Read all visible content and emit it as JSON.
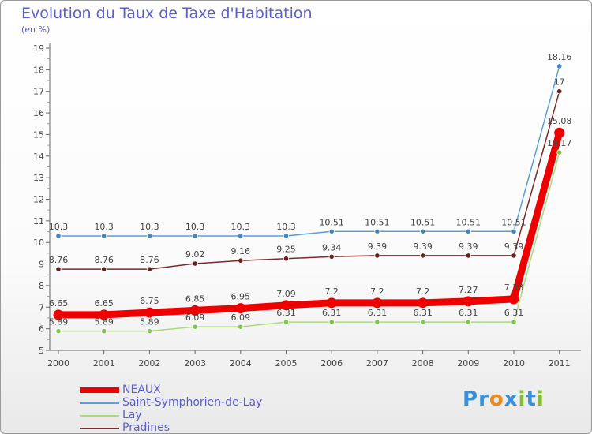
{
  "title": "Evolution du Taux de Taxe d'Habitation",
  "subtitle": "(en %)",
  "logo": {
    "letters": [
      "P",
      "r",
      "o",
      "x",
      "i",
      "t",
      "i"
    ],
    "colors": [
      "#3a8fd8",
      "#3a8fd8",
      "#f08a1e",
      "#3a8fd8",
      "#7fbf2a",
      "#3a8fd8",
      "#7fbf2a"
    ]
  },
  "chart_data": {
    "type": "line",
    "title": "Evolution du Taux de Taxe d'Habitation",
    "ylabel": "(en %)",
    "x": [
      "2000",
      "2001",
      "2002",
      "2003",
      "2004",
      "2005",
      "2006",
      "2007",
      "2008",
      "2009",
      "2010",
      "2011"
    ],
    "ylim": [
      5,
      19
    ],
    "yticks": [
      "5",
      "6",
      "7",
      "8",
      "9",
      "10",
      "11",
      "12",
      "13",
      "14",
      "15",
      "16",
      "17",
      "18",
      "19"
    ],
    "grid": false,
    "legend_position": "bottom-left",
    "series": [
      {
        "name": "NEAUX",
        "color": "#ee0000",
        "emphasis": true,
        "values": [
          6.65,
          6.65,
          6.75,
          6.85,
          6.95,
          7.09,
          7.2,
          7.2,
          7.2,
          7.27,
          7.38,
          15.08
        ],
        "labels": [
          "6.65",
          "6.65",
          "6.75",
          "6.85",
          "6.95",
          "7.09",
          "7.2",
          "7.2",
          "7.2",
          "7.27",
          "7.38",
          "15.08"
        ]
      },
      {
        "name": "Saint-Symphorien-de-Lay",
        "color": "#5b9fd4",
        "marker": "#3f86c4",
        "values": [
          10.3,
          10.3,
          10.3,
          10.3,
          10.3,
          10.3,
          10.51,
          10.51,
          10.51,
          10.51,
          10.51,
          18.16
        ],
        "labels": [
          "10.3",
          "10.3",
          "10.3",
          "10.3",
          "10.3",
          "10.3",
          "10.51",
          "10.51",
          "10.51",
          "10.51",
          "10.51",
          "18.16"
        ]
      },
      {
        "name": "Lay",
        "color": "#a8dc78",
        "marker": "#7fc64a",
        "values": [
          5.89,
          5.89,
          5.89,
          6.09,
          6.09,
          6.31,
          6.31,
          6.31,
          6.31,
          6.31,
          6.31,
          14.17
        ],
        "labels": [
          "5.89",
          "5.89",
          "5.89",
          "6.09",
          "6.09",
          "6.31",
          "6.31",
          "6.31",
          "6.31",
          "6.31",
          "6.31",
          "14.17"
        ]
      },
      {
        "name": "Pradines",
        "color": "#7a2a2a",
        "marker": "#6a1e1e",
        "values": [
          8.76,
          8.76,
          8.76,
          9.02,
          9.16,
          9.25,
          9.34,
          9.39,
          9.39,
          9.39,
          9.39,
          17
        ],
        "labels": [
          "8.76",
          "8.76",
          "8.76",
          "9.02",
          "9.16",
          "9.25",
          "9.34",
          "9.39",
          "9.39",
          "9.39",
          "9.39",
          "17"
        ]
      }
    ]
  }
}
